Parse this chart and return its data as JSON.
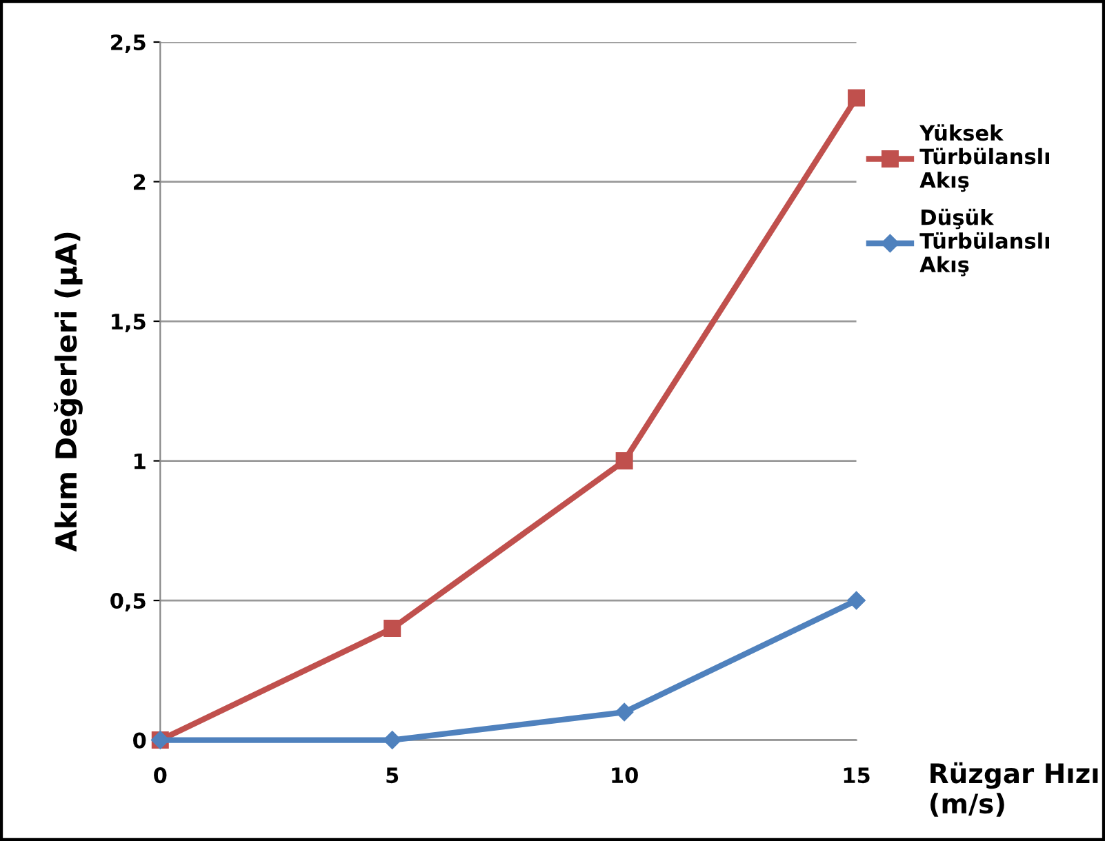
{
  "chart_data": {
    "type": "line",
    "xlabel": "Rüzgar Hızı (m/s)",
    "ylabel": "Akım Değerleri (µA)",
    "x": [
      0,
      5,
      10,
      15
    ],
    "xlim": [
      0,
      15
    ],
    "xticks": [
      0,
      5,
      10,
      15
    ],
    "ylim": [
      0,
      2.5
    ],
    "yticks": [
      {
        "value": 0,
        "label": "0"
      },
      {
        "value": 0.5,
        "label": "0,5"
      },
      {
        "value": 1,
        "label": "1"
      },
      {
        "value": 1.5,
        "label": "1,5"
      },
      {
        "value": 2,
        "label": "2"
      },
      {
        "value": 2.5,
        "label": "2,5"
      }
    ],
    "grid": "y",
    "legend": "right",
    "series": [
      {
        "name": "Yüksek Türbülanslı Akış",
        "color": "#c0504d",
        "marker": "square",
        "values": [
          0,
          0.4,
          1,
          2.3
        ]
      },
      {
        "name": "Düşük Türbülanslı Akış",
        "color": "#4f81bd",
        "marker": "diamond",
        "values": [
          0,
          0,
          0.1,
          0.5
        ]
      }
    ]
  }
}
